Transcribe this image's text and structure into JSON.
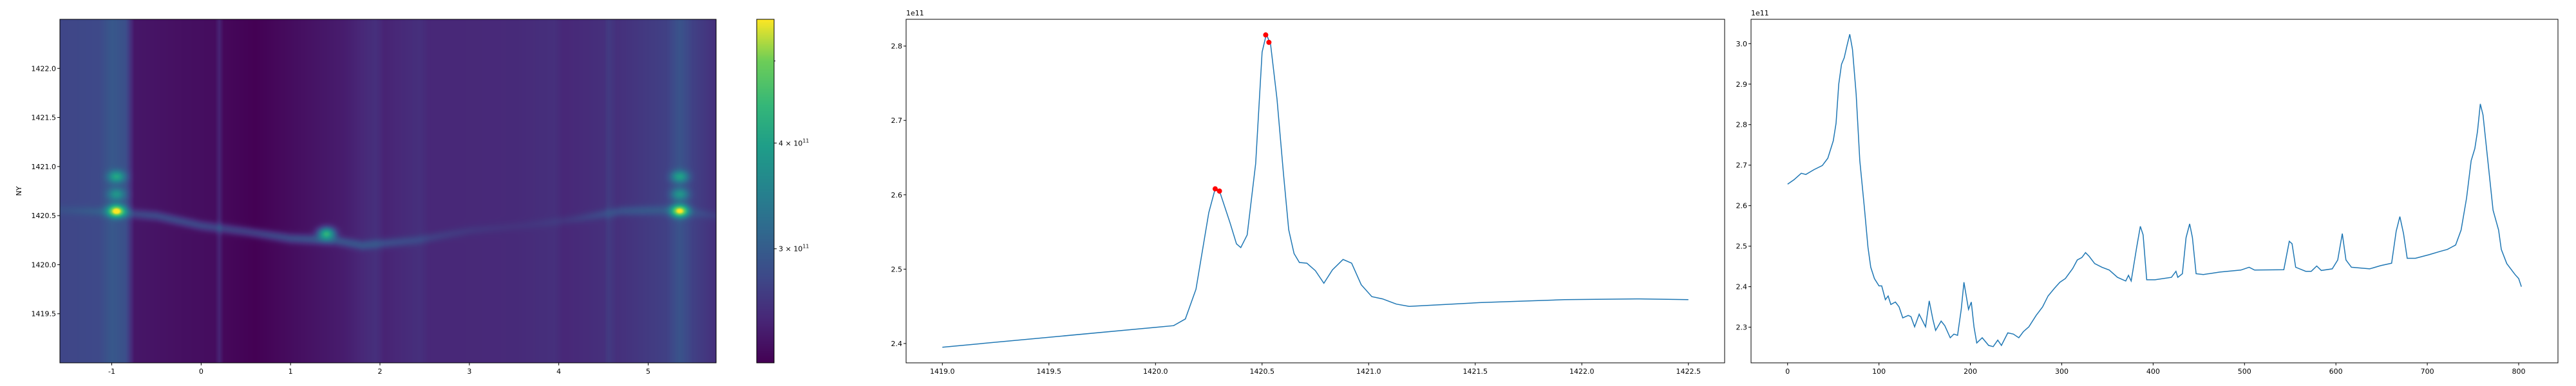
{
  "chart_data": [
    {
      "type": "heatmap",
      "colormap": "viridis",
      "ylabel": "NY",
      "xlabel": "",
      "xlim": [
        -1.58,
        5.76
      ],
      "ylim": [
        1419.0,
        1422.5
      ],
      "xticks": [
        -1,
        0,
        1,
        2,
        3,
        4,
        5
      ],
      "xtick_labels": [
        "-1",
        "0",
        "1",
        "2",
        "3",
        "4",
        "5"
      ],
      "yticks": [
        1419.5,
        1420.0,
        1420.5,
        1421.0,
        1421.5,
        1422.0
      ],
      "ytick_labels": [
        "1419.5",
        "1420.0",
        "1420.5",
        "1421.0",
        "1421.5",
        "1422.0"
      ],
      "colorbar": {
        "scale": "log",
        "range": [
          220000000000.0,
          560000000000.0
        ],
        "ticks": [
          300000000000.0,
          400000000000.0
        ],
        "tick_labels": [
          {
            "base": "3 × 10",
            "exp": "11"
          },
          {
            "base": "4 × 10",
            "exp": "11"
          }
        ],
        "minor_ticks": [
          500000000000.0
        ]
      },
      "column_profile": [
        [
          -1.58,
          275000000000.0
        ],
        [
          -1.15,
          278000000000.0
        ],
        [
          -1.0,
          295000000000.0
        ],
        [
          -0.85,
          285000000000.0
        ],
        [
          -0.75,
          235000000000.0
        ],
        [
          -0.2,
          230000000000.0
        ],
        [
          0.15,
          228000000000.0
        ],
        [
          0.2,
          245000000000.0
        ],
        [
          0.25,
          225000000000.0
        ],
        [
          0.6,
          220000000000.0
        ],
        [
          1.0,
          228000000000.0
        ],
        [
          1.6,
          240000000000.0
        ],
        [
          1.95,
          255000000000.0
        ],
        [
          2.05,
          245000000000.0
        ],
        [
          2.45,
          255000000000.0
        ],
        [
          2.55,
          248000000000.0
        ],
        [
          3.5,
          250000000000.0
        ],
        [
          3.95,
          255000000000.0
        ],
        [
          4.05,
          248000000000.0
        ],
        [
          4.5,
          255000000000.0
        ],
        [
          4.55,
          265000000000.0
        ],
        [
          4.65,
          255000000000.0
        ],
        [
          5.2,
          270000000000.0
        ],
        [
          5.35,
          290000000000.0
        ],
        [
          5.5,
          270000000000.0
        ],
        [
          5.76,
          255000000000.0
        ]
      ],
      "ridge": [
        [
          -1.58,
          1420.56
        ],
        [
          -1.0,
          1420.54
        ],
        [
          -0.5,
          1420.5
        ],
        [
          0.0,
          1420.4
        ],
        [
          0.5,
          1420.34
        ],
        [
          1.0,
          1420.27
        ],
        [
          1.5,
          1420.25
        ],
        [
          1.8,
          1420.2
        ],
        [
          2.4,
          1420.25
        ],
        [
          3.0,
          1420.35
        ],
        [
          3.6,
          1420.4
        ],
        [
          4.2,
          1420.47
        ],
        [
          4.7,
          1420.55
        ],
        [
          5.3,
          1420.56
        ],
        [
          5.76,
          1420.5
        ]
      ],
      "bright_spots": [
        {
          "x": -0.95,
          "y": 1420.55,
          "value": 560000000000.0
        },
        {
          "x": -0.95,
          "y": 1420.9,
          "value": 410000000000.0
        },
        {
          "x": -0.95,
          "y": 1420.72,
          "value": 380000000000.0
        },
        {
          "x": 1.4,
          "y": 1420.32,
          "value": 420000000000.0
        },
        {
          "x": 5.35,
          "y": 1420.55,
          "value": 550000000000.0
        },
        {
          "x": 5.35,
          "y": 1420.9,
          "value": 400000000000.0
        },
        {
          "x": 5.35,
          "y": 1420.72,
          "value": 380000000000.0
        }
      ]
    },
    {
      "type": "line",
      "offset_label": "1e11",
      "xlim": [
        1418.83,
        1422.67
      ],
      "ylim": [
        2.374,
        2.836
      ],
      "xticks": [
        1419.0,
        1419.5,
        1420.0,
        1420.5,
        1421.0,
        1421.5,
        1422.0,
        1422.5
      ],
      "xtick_labels": [
        "1419.0",
        "1419.5",
        "1420.0",
        "1420.5",
        "1421.0",
        "1421.5",
        "1422.0",
        "1422.5"
      ],
      "yticks": [
        2.4,
        2.5,
        2.6,
        2.7,
        2.8
      ],
      "ytick_labels": [
        "2.4",
        "2.5",
        "2.6",
        "2.7",
        "2.8"
      ],
      "line_color": "#1f77b4",
      "marker_color": "#ff0000",
      "x": [
        1419.0,
        1420.085,
        1420.14,
        1420.19,
        1420.25,
        1420.28,
        1420.305,
        1420.35,
        1420.38,
        1420.4,
        1420.43,
        1420.47,
        1420.5,
        1420.52,
        1420.54,
        1420.57,
        1420.6,
        1420.625,
        1420.65,
        1420.675,
        1420.71,
        1420.75,
        1420.79,
        1420.83,
        1420.88,
        1420.92,
        1420.965,
        1421.015,
        1421.065,
        1421.13,
        1421.19,
        1421.52,
        1421.92,
        1422.27,
        1422.5
      ],
      "y": [
        2.395,
        2.424,
        2.433,
        2.473,
        2.576,
        2.608,
        2.601,
        2.562,
        2.534,
        2.529,
        2.546,
        2.642,
        2.792,
        2.816,
        2.802,
        2.729,
        2.629,
        2.553,
        2.521,
        2.509,
        2.508,
        2.498,
        2.481,
        2.499,
        2.513,
        2.508,
        2.479,
        2.463,
        2.46,
        2.453,
        2.45,
        2.455,
        2.459,
        2.46,
        2.459
      ],
      "markers": [
        [
          1420.28,
          2.608
        ],
        [
          1420.3,
          2.605
        ],
        [
          1420.517,
          2.815
        ],
        [
          1420.532,
          2.805
        ]
      ]
    },
    {
      "type": "line",
      "offset_label": "1e11",
      "xlim": [
        -40,
        843
      ],
      "ylim": [
        2.212,
        3.06
      ],
      "xticks": [
        0,
        100,
        200,
        300,
        400,
        500,
        600,
        700,
        800
      ],
      "xtick_labels": [
        "0",
        "100",
        "200",
        "300",
        "400",
        "500",
        "600",
        "700",
        "800"
      ],
      "yticks": [
        2.3,
        2.4,
        2.5,
        2.6,
        2.7,
        2.8,
        2.9,
        3.0
      ],
      "ytick_labels": [
        "2.3",
        "2.4",
        "2.5",
        "2.6",
        "2.7",
        "2.8",
        "2.9",
        "3.0"
      ],
      "line_color": "#1f77b4",
      "x": [
        0,
        7,
        15,
        20,
        29,
        38,
        44,
        50,
        53,
        56,
        59,
        62,
        65,
        68,
        71,
        75,
        79,
        84,
        88,
        91,
        95,
        100,
        103,
        107,
        110,
        113,
        118,
        122,
        126,
        132,
        135,
        139,
        144,
        151,
        155,
        159,
        162,
        168,
        172,
        178,
        182,
        186,
        190,
        193,
        198,
        201,
        204,
        207,
        213,
        220,
        225,
        230,
        234,
        241,
        247,
        253,
        258,
        264,
        272,
        279,
        285,
        292,
        298,
        304,
        312,
        317,
        322,
        326,
        330,
        336,
        344,
        352,
        361,
        370,
        373,
        376,
        382,
        386,
        389,
        393,
        402,
        420,
        425,
        427,
        432,
        436,
        440,
        443,
        447,
        455,
        473,
        496,
        505,
        511,
        543,
        549,
        552,
        556,
        567,
        573,
        579,
        584,
        596,
        602,
        607,
        611,
        617,
        637,
        649,
        661,
        666,
        670,
        674,
        678,
        687,
        702,
        714,
        722,
        731,
        737,
        743,
        748,
        752,
        755,
        758,
        761,
        766,
        772,
        778,
        781,
        787,
        796,
        800,
        803
      ],
      "y": [
        2.653,
        2.664,
        2.68,
        2.677,
        2.689,
        2.699,
        2.717,
        2.76,
        2.803,
        2.9,
        2.949,
        2.965,
        2.995,
        3.023,
        2.986,
        2.876,
        2.711,
        2.595,
        2.497,
        2.448,
        2.42,
        2.402,
        2.402,
        2.368,
        2.377,
        2.356,
        2.362,
        2.35,
        2.323,
        2.329,
        2.326,
        2.301,
        2.332,
        2.301,
        2.365,
        2.319,
        2.292,
        2.315,
        2.304,
        2.274,
        2.283,
        2.28,
        2.344,
        2.411,
        2.344,
        2.362,
        2.301,
        2.261,
        2.274,
        2.255,
        2.252,
        2.268,
        2.255,
        2.286,
        2.283,
        2.274,
        2.289,
        2.301,
        2.329,
        2.35,
        2.377,
        2.396,
        2.411,
        2.42,
        2.445,
        2.466,
        2.472,
        2.484,
        2.475,
        2.457,
        2.448,
        2.441,
        2.423,
        2.414,
        2.428,
        2.414,
        2.497,
        2.549,
        2.528,
        2.417,
        2.417,
        2.423,
        2.438,
        2.423,
        2.432,
        2.521,
        2.555,
        2.521,
        2.432,
        2.43,
        2.436,
        2.441,
        2.448,
        2.441,
        2.442,
        2.512,
        2.506,
        2.448,
        2.438,
        2.438,
        2.451,
        2.44,
        2.444,
        2.466,
        2.531,
        2.466,
        2.448,
        2.444,
        2.452,
        2.458,
        2.537,
        2.573,
        2.531,
        2.47,
        2.47,
        2.479,
        2.487,
        2.492,
        2.503,
        2.54,
        2.619,
        2.711,
        2.741,
        2.784,
        2.851,
        2.824,
        2.717,
        2.589,
        2.54,
        2.492,
        2.457,
        2.43,
        2.42,
        2.4
      ]
    }
  ]
}
